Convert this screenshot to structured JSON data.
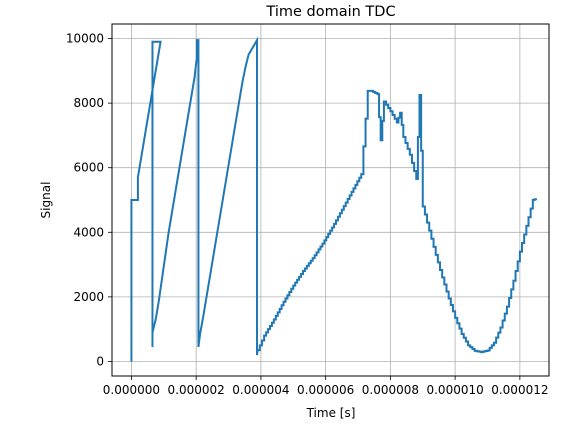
{
  "chart_data": {
    "type": "line",
    "title": "Time domain TDC",
    "xlabel": "Time [s]",
    "ylabel": "Signal",
    "xlim": [
      -6e-07,
      1.29e-05
    ],
    "ylim": [
      -450,
      10450
    ],
    "grid": true,
    "x_ticks": [
      {
        "value": 0.0,
        "label": "0.000000"
      },
      {
        "value": 2e-06,
        "label": "0.000002"
      },
      {
        "value": 4e-06,
        "label": "0.000004"
      },
      {
        "value": 6e-06,
        "label": "0.000006"
      },
      {
        "value": 8e-06,
        "label": "0.000008"
      },
      {
        "value": 1e-05,
        "label": "0.000010"
      },
      {
        "value": 1.2e-05,
        "label": "0.000012"
      }
    ],
    "y_ticks": [
      {
        "value": 0,
        "label": "0"
      },
      {
        "value": 2000,
        "label": "2000"
      },
      {
        "value": 4000,
        "label": "4000"
      },
      {
        "value": 6000,
        "label": "6000"
      },
      {
        "value": 8000,
        "label": "8000"
      },
      {
        "value": 10000,
        "label": "10000"
      }
    ],
    "series": [
      {
        "color": "#1f77b4",
        "step": 1e-07,
        "points": [
          [
            0.0,
            0
          ],
          [
            0.0,
            5000
          ],
          [
            2e-07,
            5000
          ],
          [
            2e-07,
            5700
          ],
          [
            3e-07,
            6300
          ],
          [
            4e-07,
            6900
          ],
          [
            5e-07,
            7500
          ],
          [
            6e-07,
            8100
          ],
          [
            7e-07,
            8700
          ],
          [
            8e-07,
            9300
          ],
          [
            9e-07,
            9900
          ],
          [
            6.5e-07,
            9900
          ],
          [
            6.5e-07,
            450
          ],
          [
            6.5e-07,
            900
          ],
          [
            7.5e-07,
            1300
          ],
          [
            8.5e-07,
            1900
          ],
          [
            9.5e-07,
            2600
          ],
          [
            1.05e-06,
            3300
          ],
          [
            1.15e-06,
            4000
          ],
          [
            1.25e-06,
            4600
          ],
          [
            1.35e-06,
            5200
          ],
          [
            1.45e-06,
            5800
          ],
          [
            1.55e-06,
            6400
          ],
          [
            1.65e-06,
            7000
          ],
          [
            1.75e-06,
            7600
          ],
          [
            1.85e-06,
            8200
          ],
          [
            1.95e-06,
            8800
          ],
          [
            2.02e-06,
            9400
          ],
          [
            2.02e-06,
            9950
          ],
          [
            2.07e-06,
            9950
          ],
          [
            2.07e-06,
            450
          ],
          [
            2.12e-06,
            850
          ],
          [
            2.22e-06,
            1400
          ],
          [
            2.32e-06,
            2000
          ],
          [
            2.42e-06,
            2600
          ],
          [
            2.52e-06,
            3200
          ],
          [
            2.62e-06,
            3800
          ],
          [
            2.72e-06,
            4400
          ],
          [
            2.82e-06,
            5000
          ],
          [
            2.92e-06,
            5600
          ],
          [
            3.02e-06,
            6200
          ],
          [
            3.12e-06,
            6800
          ],
          [
            3.22e-06,
            7400
          ],
          [
            3.32e-06,
            8000
          ],
          [
            3.42e-06,
            8600
          ],
          [
            3.52e-06,
            9100
          ],
          [
            3.62e-06,
            9500
          ],
          [
            3.88e-06,
            9950
          ],
          [
            3.88e-06,
            200
          ]
        ],
        "tail_samples": [
          [
            3.9e-06,
            350
          ],
          [
            4.1e-06,
            800
          ],
          [
            4.4e-06,
            1300
          ],
          [
            4.7e-06,
            1850
          ],
          [
            5e-06,
            2350
          ],
          [
            5.3e-06,
            2800
          ],
          [
            5.6e-06,
            3200
          ],
          [
            5.9e-06,
            3650
          ],
          [
            6.2e-06,
            4150
          ],
          [
            6.5e-06,
            4700
          ],
          [
            6.8e-06,
            5250
          ],
          [
            7.1e-06,
            5800
          ],
          [
            7.4e-06,
            6350
          ],
          [
            7.7e-06,
            6850
          ],
          [
            8e-06,
            7300
          ],
          [
            8.3e-06,
            7700
          ],
          [
            8.6e-06,
            8000
          ],
          [
            8.9e-06,
            8250
          ],
          [
            7.3e-06,
            8380
          ],
          [
            7.4e-06,
            8380
          ],
          [
            7.6e-06,
            8280
          ],
          [
            7.8e-06,
            8050
          ],
          [
            8e-06,
            7750
          ],
          [
            8.2e-06,
            7400
          ],
          [
            8.4e-06,
            6950
          ],
          [
            8.6e-06,
            6400
          ],
          [
            8.8e-06,
            5650
          ],
          [
            9e-06,
            4800
          ],
          [
            9.2e-06,
            4050
          ],
          [
            9.4e-06,
            3300
          ],
          [
            9.6e-06,
            2600
          ],
          [
            9.8e-06,
            1950
          ],
          [
            1e-05,
            1350
          ],
          [
            1.02e-05,
            850
          ],
          [
            1.04e-05,
            500
          ],
          [
            1.06e-05,
            330
          ],
          [
            1.08e-05,
            290
          ],
          [
            1.1e-05,
            340
          ],
          [
            1.12e-05,
            580
          ],
          [
            1.14e-05,
            1050
          ],
          [
            1.16e-05,
            1700
          ],
          [
            1.18e-05,
            2500
          ],
          [
            1.2e-05,
            3400
          ],
          [
            1.22e-05,
            4200
          ],
          [
            1.24e-05,
            5000
          ],
          [
            1.25e-05,
            5050
          ]
        ]
      }
    ]
  }
}
